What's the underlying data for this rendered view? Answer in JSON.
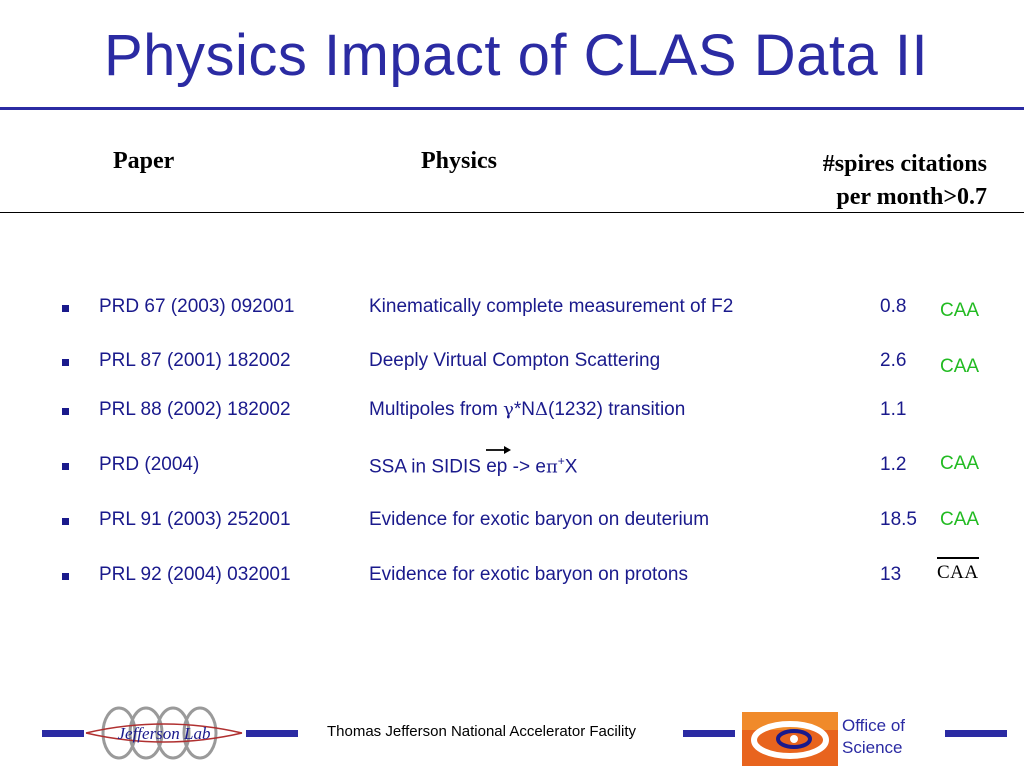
{
  "title": "Physics Impact of CLAS Data II",
  "headers": {
    "paper": "Paper",
    "physics": "Physics",
    "citations_line1": "#spires citations",
    "citations_line2": "per month>0.7"
  },
  "rows": [
    {
      "paper": "PRD 67 (2003) 092001",
      "physics": "Kinematically complete measurement of F2",
      "citations": "0.8",
      "tag": "CAA"
    },
    {
      "paper": "PRL 87 (2001) 182002",
      "physics": "Deeply Virtual Compton Scattering",
      "citations": "2.6",
      "tag": "CAA"
    },
    {
      "paper": "PRL 88 (2002) 182002",
      "physics_parts": [
        "Multipoles from ",
        "γ",
        "*N",
        "Δ",
        "(1232) transition"
      ],
      "citations": "1.1",
      "tag": ""
    },
    {
      "paper": "PRD (2004)",
      "physics_parts": [
        "SSA in  SIDIS ",
        "ep",
        " -> e",
        "π",
        "+",
        "X"
      ],
      "citations": "1.2",
      "tag": "CAA"
    },
    {
      "paper": "PRL 91 (2003) 252001",
      "physics": "Evidence for exotic baryon on deuterium",
      "citations": "18.5",
      "tag": "CAA"
    },
    {
      "paper": "PRL 92 (2004) 032001",
      "physics": "Evidence for exotic baryon on protons",
      "citations": "13",
      "tag": "CAA"
    }
  ],
  "footer": {
    "lab_logo_text": "Jefferson Lab",
    "facility": "Thomas Jefferson National Accelerator Facility",
    "office_line1": "Office of",
    "office_line2": "Science"
  },
  "colors": {
    "title": "#2b2ba3",
    "row_text": "#1a1a8c",
    "caa": "#22bb22"
  }
}
